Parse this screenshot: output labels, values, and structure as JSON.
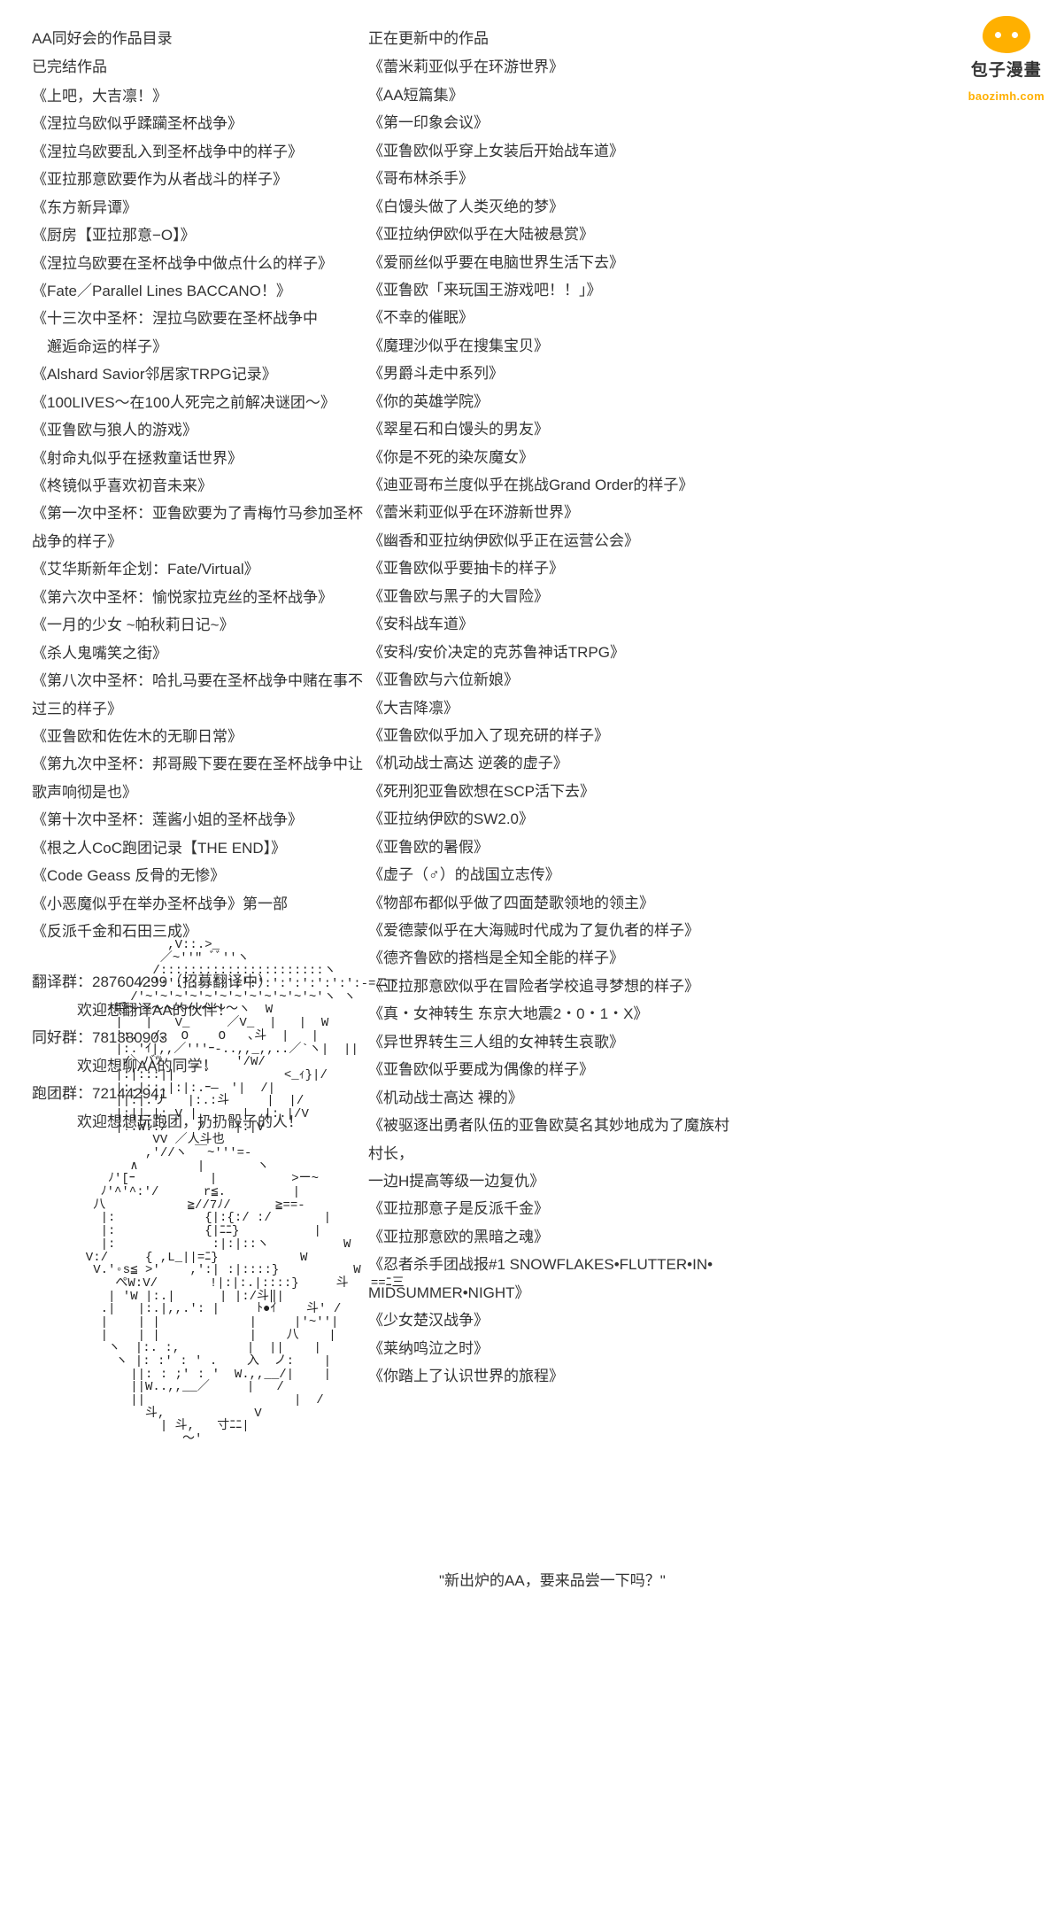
{
  "watermark": {
    "cn": "包子漫畫",
    "en": "baozimh.com"
  },
  "left": {
    "title1": "AA同好会的作品目录",
    "title2": "已完结作品",
    "items": [
      "《上吧，大吉凛！》",
      "《涅拉乌欧似乎蹂躏圣杯战争》",
      "《涅拉乌欧要乱入到圣杯战争中的样子》",
      "《亚拉那意欧要作为从者战斗的样子》",
      "《东方新异谭》",
      "《厨房【亚拉那意−O】》",
      "《涅拉乌欧要在圣杯战争中做点什么的样子》",
      "《Fate／Parallel Lines BACCANO！》",
      "《十三次中圣杯：涅拉乌欧要在圣杯战争中\n　邂逅命运的样子》",
      "《Alshard Savior邻居家TRPG记录》",
      "《100LIVES～在100人死完之前解决谜团～》",
      "《亚鲁欧与狼人的游戏》",
      "《射命丸似乎在拯救童话世界》",
      "《柊镜似乎喜欢初音未来》",
      "《第一次中圣杯：亚鲁欧要为了青梅竹马参加圣杯战争的样子》",
      "《艾华斯新年企划：Fate/Virtual》",
      "《第六次中圣杯：愉悦家拉克丝的圣杯战争》",
      "《一月的少女 ~帕秋莉日记~》",
      "《杀人鬼嘴笑之街》",
      "《第八次中圣杯：哈扎马要在圣杯战争中赌在事不过三的样子》",
      "《亚鲁欧和佐佐木的无聊日常》",
      "《第九次中圣杯：邦哥殿下要在要在圣杯战争中让歌声响彻是也》",
      "《第十次中圣杯：莲酱小姐的圣杯战争》",
      "《根之人CoC跑团记录【THE END】》",
      "《Code Geass 反骨的无惨》",
      "《小恶魔似乎在举办圣杯战争》第一部",
      "《反派千金和石田三成》"
    ]
  },
  "groups": [
    {
      "line": "翻译群：287604299（招募翻译中）",
      "sub": "欢迎想翻译AA的伙伴！"
    },
    {
      "line": "同好群：781380903",
      "sub": "欢迎想聊AA的同学！"
    },
    {
      "line": "跑团群：721442941",
      "sub": "欢迎想想玩跑团，扔扔骰子的人！"
    }
  ],
  "right": {
    "title": "正在更新中的作品",
    "items": [
      "《蕾米莉亚似乎在环游世界》",
      "《AA短篇集》",
      "《第一印象会议》",
      "《亚鲁欧似乎穿上女装后开始战车道》",
      "《哥布林杀手》",
      "《白馒头做了人类灭绝的梦》",
      "《亚拉纳伊欧似乎在大陆被悬赏》",
      "《爱丽丝似乎要在电脑世界生活下去》",
      "《亚鲁欧「来玩国王游戏吧！！」》",
      "《不幸的催眠》",
      "《魔理沙似乎在搜集宝贝》",
      "《男爵斗走中系列》",
      "《你的英雄学院》",
      "《翠星石和白馒头的男友》",
      "《你是不死的染灰魔女》",
      "《迪亚哥布兰度似乎在挑战Grand Order的样子》",
      "《蕾米莉亚似乎在环游新世界》",
      "《幽香和亚拉纳伊欧似乎正在运营公会》",
      "《亚鲁欧似乎要抽卡的样子》",
      "《亚鲁欧与黑子的大冒险》",
      "《安科战车道》",
      "《安科/安价决定的克苏鲁神话TRPG》",
      "《亚鲁欧与六位新娘》",
      "《大吉降凛》",
      "《亚鲁欧似乎加入了现充研的样子》",
      "《机动战士高达 逆袭的虚子》",
      "《死刑犯亚鲁欧想在SCP活下去》",
      "《亚拉纳伊欧的SW2.0》",
      "《亚鲁欧的暑假》",
      "《虚子（♂）的战国立志传》",
      "《物部布都似乎做了四面楚歌领地的领主》",
      "《爱德蒙似乎在大海贼时代成为了复仇者的样子》",
      "《德齐鲁欧的搭档是全知全能的样子》",
      "《亚拉那意欧似乎在冒险者学校追寻梦想的样子》",
      "《真・女神转生 东京大地震2・0・1・X》",
      "《异世界转生三人组的女神转生哀歌》",
      "《亚鲁欧似乎要成为偶像的样子》",
      "《机动战士高达 裸的》",
      "《被驱逐出勇者队伍的亚鲁欧莫名其妙地成为了魔族村村长，\n一边H提高等级一边复仇》",
      "《亚拉那意子是反派千金》",
      "《亚拉那意欧的黑暗之魂》",
      "《忍者杀手团战报#1 SNOWFLAKES•FLUTTER•IN•\nMIDSUMMER•NIGHT》",
      "《少女楚汉战争》",
      "《莱纳鸣泣之时》",
      "《你踏上了认识世界的旅程》"
    ]
  },
  "quote": "\"新出炉的AA，要来品尝一下吗？\"",
  "ascii": "             ,V::.>_\n            ／~''\" ﾞﾞ''ヽ\n           /::::::::::::::::::::::ヽ\n         /:':':':':':':':':':':':':':':-=ニ丶\n        /'~'~'~'~'~'~'~'~'~'~'~'~'ヽ ヽ\n     ｨ埒～～～～～～～～～ヽ  W\n      |   |   V_     ／V_  |   |  W\n      |:.  /､  O    O   ､斗  |   |\n      |:.'ｲ|,,／'''ｰ-..,,_,,..／`ヽ|  ||\n       /＼バﾂ    _     '/W/\n      |:|:::||    ゛         <_ｨ}|/\n      |:.|::.|:|:.ｰ―　′|  /|\n      ||:|.リ   |:.:斗     |  |/\n      |:||.|: V |      |  |:.|/V\n      |!.W::/    /    |:|V\n           VV ／人斗也\n          ,'//ヽ ￣~'''=-\n        ∧        |       ヽ\n     ﾉ'[ｰ          |          >ー~\n    ﾉ'^'^:'/      r≦.         |\n   八           ≧//7ﾉ/      ≧==-\n    |:            {|:{:/ :/       |\n    |:            {|ﾆﾆ}          |\n    |:             :|:|::ヽ          W\n  V:/     { ,L_||=ﾆ}           W\n   V.'◦s≦ >'    ,':| :|::::}          W\n      ぺW:V/       !|:|:.|::::}     斗   ==ﾆ三\n     | 'W |:.|      | |:/斗‖|\n    .|   |:.|,,.': |     ﾄ●ｲ    斗' /\n    |    | |            |     |'~''|\n    |    | |            |    八    |\n     ヽ  |:. :,         |  ||    |\n      ヽ |: :' : ' .    入  ノ:    |\n        ||: : ;' : '  W.,,__/|    |\n        ||W..,,__／     |   /\n        ||                    |  /\n          斗,            V\n            | 斗,   寸ﾆﾆ|\n               ～'"
}
